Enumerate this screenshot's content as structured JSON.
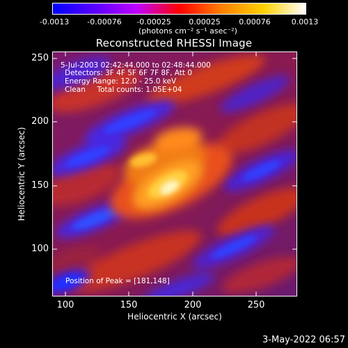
{
  "colorbar": {
    "tick_labels": [
      "-0.0013",
      "-0.00076",
      "-0.00025",
      "0.00025",
      "0.00076",
      "0.0013"
    ],
    "units": "(photons cm⁻² s⁻¹ asec⁻²)",
    "colors": [
      "#0000ff",
      "#5a00ff",
      "#c000ff",
      "#ff0000",
      "#ff8000",
      "#ffd000",
      "#ffffff"
    ]
  },
  "title": "Reconstructed RHESSI Image",
  "info": {
    "time": "5-Jul-2003 02:42:44.000 to 02:48:44.000",
    "detectors": "Detectors: 3F 4F 5F 6F 7F 8F, Att 0",
    "energy": "Energy Range: 12.0 - 25.0 keV",
    "method": "Clean     Total counts: 1.05E+04",
    "peak": "Position of Peak = [181,148]"
  },
  "axes": {
    "x_label": "Heliocentric X (arcsec)",
    "y_label": "Heliocentric Y (arcsec)",
    "x_ticks": [
      "100",
      "150",
      "200",
      "250"
    ],
    "y_ticks": [
      "250",
      "200",
      "150",
      "100"
    ],
    "x_range": [
      90,
      280
    ],
    "y_range": [
      60,
      255
    ]
  },
  "footer": {
    "date": "3-May-2022 06:57"
  }
}
